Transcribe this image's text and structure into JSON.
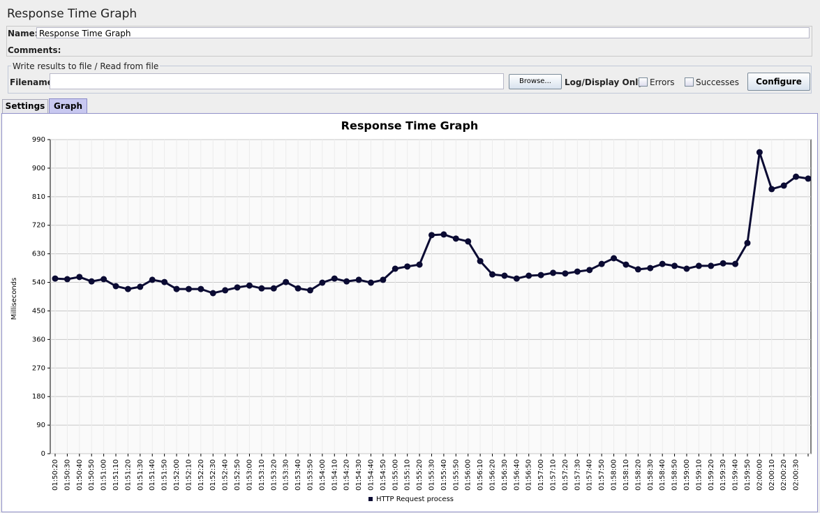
{
  "header": {
    "title": "Response Time Graph"
  },
  "name_field": {
    "label": "Name:",
    "value": "Response Time Graph"
  },
  "comments_field": {
    "label": "Comments:"
  },
  "file_section": {
    "legend": "Write results to file / Read from file",
    "filename_label": "Filename",
    "browse_button": "Browse...",
    "log_display_label": "Log/Display Only:",
    "errors_checkbox": "Errors",
    "successes_checkbox": "Successes",
    "configure_button": "Configure"
  },
  "tabs": [
    "Settings",
    "Graph"
  ],
  "chart_data": {
    "type": "line",
    "title": "Response Time Graph",
    "y_label": "Milliseconds",
    "categories": [
      "01:50:20",
      "01:50:30",
      "01:50:40",
      "01:50:50",
      "01:51:00",
      "01:51:10",
      "01:51:20",
      "01:51:30",
      "01:51:40",
      "01:51:50",
      "01:52:00",
      "01:52:10",
      "01:52:20",
      "01:52:30",
      "01:52:40",
      "01:52:50",
      "01:53:00",
      "01:53:10",
      "01:53:20",
      "01:53:30",
      "01:53:40",
      "01:53:50",
      "01:54:00",
      "01:54:10",
      "01:54:20",
      "01:54:30",
      "01:54:40",
      "01:54:50",
      "01:55:00",
      "01:55:10",
      "01:55:20",
      "01:55:30",
      "01:55:40",
      "01:55:50",
      "01:56:00",
      "01:56:10",
      "01:56:20",
      "01:56:30",
      "01:56:40",
      "01:56:50",
      "01:57:00",
      "01:57:10",
      "01:57:20",
      "01:57:30",
      "01:57:40",
      "01:57:50",
      "01:58:00",
      "01:58:10",
      "01:58:20",
      "01:58:30",
      "01:58:40",
      "01:58:50",
      "01:59:00",
      "01:59:10",
      "01:59:20",
      "01:59:30",
      "01:59:40",
      "01:59:50",
      "02:00:00",
      "02:00:10",
      "02:00:20",
      "02:00:30",
      null
    ],
    "series": [
      {
        "name": "HTTP Request process",
        "color": "#0b0b33",
        "values": [
          552,
          550,
          557,
          543,
          550,
          528,
          519,
          526,
          548,
          541,
          519,
          519,
          519,
          506,
          515,
          524,
          530,
          521,
          521,
          541,
          521,
          515,
          539,
          552,
          543,
          548,
          539,
          548,
          583,
          590,
          596,
          689,
          691,
          678,
          669,
          607,
          565,
          561,
          552,
          561,
          563,
          570,
          568,
          574,
          579,
          598,
          616,
          596,
          581,
          585,
          598,
          592,
          583,
          592,
          592,
          600,
          598,
          664,
          950,
          834,
          845,
          873,
          867
        ]
      }
    ],
    "ylim": [
      0,
      990
    ],
    "yticks": [
      0,
      90,
      180,
      270,
      360,
      450,
      540,
      630,
      720,
      810,
      900,
      990
    ],
    "grid": true,
    "legend": "bottom"
  }
}
